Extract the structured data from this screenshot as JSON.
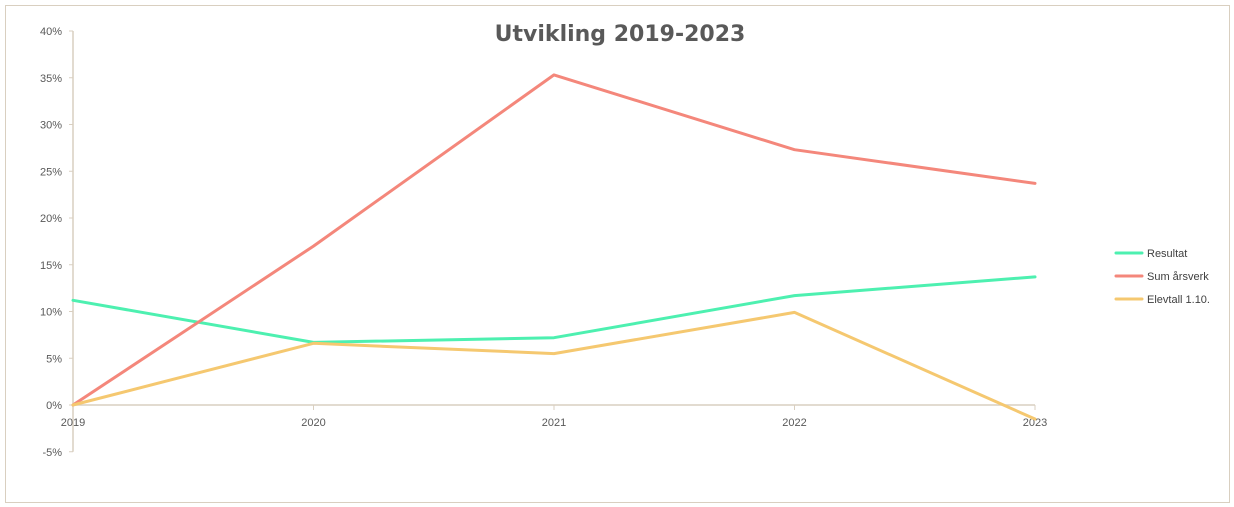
{
  "chart_data": {
    "type": "line",
    "title": "Utvikling 2019-2023",
    "x": [
      "2019",
      "2020",
      "2021",
      "2022",
      "2023"
    ],
    "ylim": [
      -5,
      40
    ],
    "yticks": [
      -5,
      0,
      5,
      10,
      15,
      20,
      25,
      30,
      35,
      40
    ],
    "ytick_labels": [
      "-5%",
      "0%",
      "5%",
      "10%",
      "15%",
      "20%",
      "25%",
      "30%",
      "35%",
      "40%"
    ],
    "grid": false,
    "legend_position": "right",
    "series": [
      {
        "name": "Resultat",
        "color": "#4df0b0",
        "values": [
          11.2,
          6.7,
          7.2,
          11.7,
          13.7
        ]
      },
      {
        "name": "Sum årsverk",
        "color": "#f4877b",
        "values": [
          0,
          17.0,
          35.3,
          27.3,
          23.7
        ]
      },
      {
        "name": "Elevtall 1.10.",
        "color": "#f5c870",
        "values": [
          0,
          6.6,
          5.5,
          9.9,
          -1.5
        ]
      }
    ]
  }
}
